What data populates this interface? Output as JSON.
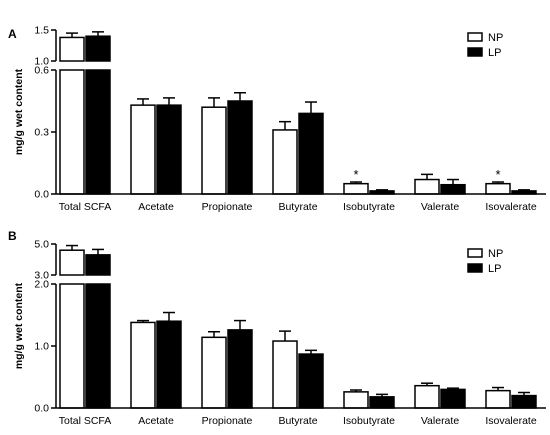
{
  "legend": [
    {
      "label": "NP",
      "color": "#ffffff"
    },
    {
      "label": "LP",
      "color": "#000000"
    }
  ],
  "chart_data": [
    {
      "type": "bar",
      "panel_label": "A",
      "ylabel": "mg/g wet content",
      "y_axis_break": true,
      "y_lower_range": [
        0,
        0.6
      ],
      "y_upper_range": [
        1.0,
        1.5
      ],
      "y_lower_ticks": [
        "0.0",
        "0.3",
        "0.6"
      ],
      "y_upper_ticks": [
        "1.0",
        "1.5"
      ],
      "categories": [
        "Total SCFA",
        "Acetate",
        "Propionate",
        "Butyrate",
        "Isobutyrate",
        "Valerate",
        "Isovalerate"
      ],
      "series": [
        {
          "name": "NP",
          "values": [
            1.38,
            0.43,
            0.42,
            0.31,
            0.05,
            0.07,
            0.05
          ],
          "errors": [
            0.07,
            0.03,
            0.045,
            0.04,
            0.008,
            0.025,
            0.008
          ]
        },
        {
          "name": "LP",
          "values": [
            1.4,
            0.43,
            0.45,
            0.39,
            0.015,
            0.045,
            0.015
          ],
          "errors": [
            0.07,
            0.035,
            0.04,
            0.055,
            0.005,
            0.025,
            0.005
          ]
        }
      ],
      "annotations": [
        {
          "category": "Isobutyrate",
          "series": "NP",
          "text": "*"
        },
        {
          "category": "Isovalerate",
          "series": "NP",
          "text": "*"
        }
      ]
    },
    {
      "type": "bar",
      "panel_label": "B",
      "ylabel": "mg/g wet content",
      "y_axis_break": true,
      "y_lower_range": [
        0,
        2.0
      ],
      "y_upper_range": [
        3.0,
        5.0
      ],
      "y_lower_ticks": [
        "0.0",
        "1.0",
        "2.0"
      ],
      "y_upper_ticks": [
        "3.0",
        "5.0"
      ],
      "categories": [
        "Total SCFA",
        "Acetate",
        "Propionate",
        "Butyrate",
        "Isobutyrate",
        "Valerate",
        "Isovalerate"
      ],
      "series": [
        {
          "name": "NP",
          "values": [
            4.6,
            1.38,
            1.14,
            1.08,
            0.26,
            0.36,
            0.28
          ],
          "errors": [
            0.3,
            0.03,
            0.09,
            0.16,
            0.03,
            0.04,
            0.05
          ]
        },
        {
          "name": "LP",
          "values": [
            4.3,
            1.4,
            1.26,
            0.87,
            0.18,
            0.3,
            0.2
          ],
          "errors": [
            0.35,
            0.14,
            0.15,
            0.06,
            0.04,
            0.02,
            0.05
          ]
        }
      ],
      "annotations": []
    }
  ]
}
